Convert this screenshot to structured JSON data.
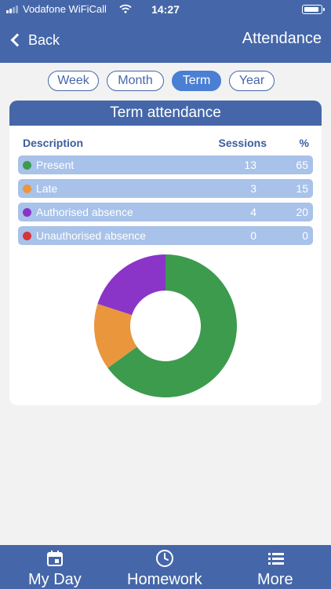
{
  "status_bar": {
    "carrier": "Vodafone WiFiCall",
    "time": "14:27"
  },
  "nav": {
    "back_label": "Back",
    "title": "Attendance"
  },
  "periods": {
    "options": [
      "Week",
      "Month",
      "Term",
      "Year"
    ],
    "selected": "Term"
  },
  "card": {
    "title": "Term attendance",
    "columns": {
      "description": "Description",
      "sessions": "Sessions",
      "percent": "%"
    },
    "rows": [
      {
        "label": "Present",
        "sessions": "13",
        "percent": "65",
        "color": "#3d9b4e"
      },
      {
        "label": "Late",
        "sessions": "3",
        "percent": "15",
        "color": "#ea963c"
      },
      {
        "label": "Authorised absence",
        "sessions": "4",
        "percent": "20",
        "color": "#8a35c7"
      },
      {
        "label": "Unauthorised absence",
        "sessions": "0",
        "percent": "0",
        "color": "#d93535"
      }
    ]
  },
  "chart_data": {
    "type": "pie",
    "style": "donut",
    "categories": [
      "Present",
      "Late",
      "Authorised absence",
      "Unauthorised absence"
    ],
    "values": [
      13,
      3,
      4,
      0
    ],
    "colors": [
      "#3d9b4e",
      "#ea963c",
      "#8a35c7",
      "#d93535"
    ]
  },
  "tabbar": {
    "tabs": [
      {
        "label": "My Day",
        "icon": "calendar-icon"
      },
      {
        "label": "Homework",
        "icon": "clock-icon"
      },
      {
        "label": "More",
        "icon": "list-icon"
      }
    ]
  },
  "colors": {
    "brand": "#4567a9",
    "active_pill": "#4a7fd4",
    "row_background": "#a8c2e9"
  }
}
